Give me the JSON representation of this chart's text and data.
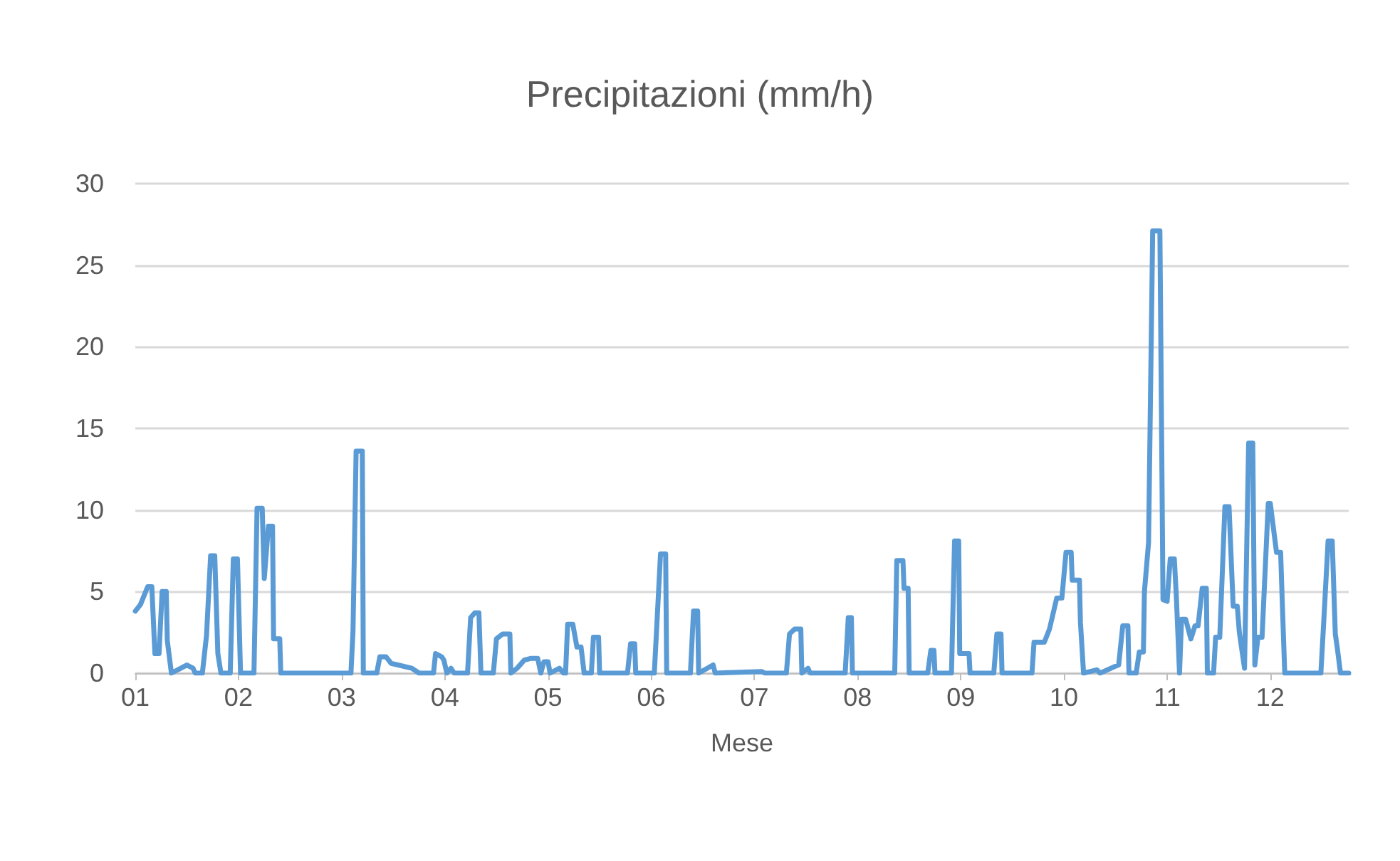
{
  "chart_data": {
    "type": "line",
    "title": "Precipitazioni (mm/h)",
    "xlabel": "Mese",
    "xlim": [
      1,
      12.76
    ],
    "ylim": [
      0,
      30
    ],
    "yticks": [
      0,
      5,
      10,
      15,
      20,
      25,
      30
    ],
    "xticks": [
      {
        "value": 1,
        "label": "01"
      },
      {
        "value": 2,
        "label": "02"
      },
      {
        "value": 3,
        "label": "03"
      },
      {
        "value": 4,
        "label": "04"
      },
      {
        "value": 5,
        "label": "05"
      },
      {
        "value": 6,
        "label": "06"
      },
      {
        "value": 7,
        "label": "07"
      },
      {
        "value": 8,
        "label": "08"
      },
      {
        "value": 9,
        "label": "09"
      },
      {
        "value": 10,
        "label": "10"
      },
      {
        "value": 11,
        "label": "11"
      },
      {
        "value": 12,
        "label": "12"
      }
    ],
    "grid": "y",
    "marker": "none",
    "line_style": "solid",
    "series": [
      {
        "color": "#5b9bd5",
        "x": [
          1.0,
          1.05,
          1.12,
          1.16,
          1.19,
          1.23,
          1.26,
          1.3,
          1.31,
          1.35,
          1.5,
          1.56,
          1.58,
          1.65,
          1.69,
          1.73,
          1.77,
          1.8,
          1.83,
          1.92,
          1.95,
          1.99,
          2.02,
          2.15,
          2.18,
          2.23,
          2.25,
          2.29,
          2.33,
          2.34,
          2.4,
          2.41,
          3.09,
          3.11,
          3.14,
          3.2,
          3.21,
          3.34,
          3.37,
          3.43,
          3.48,
          3.68,
          3.75,
          3.89,
          3.91,
          3.97,
          3.99,
          4.02,
          4.06,
          4.09,
          4.22,
          4.25,
          4.29,
          4.33,
          4.35,
          4.47,
          4.5,
          4.56,
          4.63,
          4.64,
          4.7,
          4.77,
          4.83,
          4.9,
          4.93,
          4.96,
          5.0,
          5.02,
          5.11,
          5.15,
          5.17,
          5.19,
          5.24,
          5.28,
          5.32,
          5.35,
          5.42,
          5.44,
          5.49,
          5.5,
          5.77,
          5.8,
          5.84,
          5.85,
          6.03,
          6.05,
          6.09,
          6.14,
          6.15,
          6.38,
          6.41,
          6.45,
          6.46,
          6.6,
          6.62,
          7.07,
          7.1,
          7.31,
          7.34,
          7.39,
          7.45,
          7.46,
          7.52,
          7.54,
          7.88,
          7.91,
          7.94,
          7.95,
          8.36,
          8.38,
          8.44,
          8.45,
          8.49,
          8.5,
          8.68,
          8.71,
          8.74,
          8.75,
          8.91,
          8.94,
          8.98,
          8.99,
          9.08,
          9.09,
          9.32,
          9.35,
          9.39,
          9.4,
          9.69,
          9.71,
          9.81,
          9.86,
          9.93,
          9.98,
          10.02,
          10.07,
          10.08,
          10.15,
          10.16,
          10.19,
          10.32,
          10.35,
          10.49,
          10.53,
          10.57,
          10.62,
          10.63,
          10.7,
          10.73,
          10.77,
          10.78,
          10.82,
          10.86,
          10.93,
          10.96,
          11.0,
          11.03,
          11.07,
          11.09,
          11.12,
          11.14,
          11.18,
          11.23,
          11.27,
          11.3,
          11.34,
          11.38,
          11.39,
          11.45,
          11.47,
          11.51,
          11.56,
          11.6,
          11.64,
          11.68,
          11.7,
          11.75,
          11.79,
          11.83,
          11.85,
          11.88,
          11.92,
          11.98,
          12.0,
          12.06,
          12.1,
          12.12,
          12.14,
          12.49,
          12.52,
          12.56,
          12.6,
          12.63,
          12.65,
          12.68,
          12.76
        ],
        "values": [
          3.8,
          4.2,
          5.3,
          5.3,
          1.2,
          1.2,
          5.0,
          5.0,
          2.0,
          0,
          0.5,
          0.3,
          0,
          0,
          2.3,
          7.2,
          7.2,
          1.2,
          0,
          0,
          7.0,
          7.0,
          0,
          0,
          10.1,
          10.1,
          5.8,
          9.0,
          9.0,
          2.1,
          2.1,
          0,
          0,
          2.6,
          13.6,
          13.6,
          0,
          0,
          1.0,
          1.0,
          0.6,
          0.3,
          0,
          0,
          1.2,
          1.0,
          0.8,
          0,
          0.3,
          0,
          0,
          3.4,
          3.7,
          3.7,
          0,
          0,
          2.1,
          2.4,
          2.4,
          0,
          0.3,
          0.8,
          0.9,
          0.9,
          0,
          0.7,
          0.7,
          0,
          0.3,
          0,
          0,
          3.0,
          3.0,
          1.6,
          1.6,
          0,
          0,
          2.2,
          2.2,
          0,
          0,
          1.8,
          1.8,
          0,
          0,
          2.4,
          7.3,
          7.3,
          0,
          0,
          3.8,
          3.8,
          0,
          0.5,
          0,
          0.1,
          0,
          0,
          2.4,
          2.7,
          2.7,
          0,
          0.3,
          0,
          0,
          3.4,
          3.4,
          0,
          0,
          6.9,
          6.9,
          5.2,
          5.2,
          0,
          0,
          1.4,
          1.4,
          0,
          0,
          8.1,
          8.1,
          1.2,
          1.2,
          0,
          0,
          2.4,
          2.4,
          0,
          0,
          1.9,
          1.9,
          2.7,
          4.6,
          4.6,
          7.4,
          7.4,
          5.7,
          5.7,
          3.1,
          0,
          0.2,
          0,
          0.4,
          0.5,
          2.9,
          2.9,
          0,
          0,
          1.3,
          1.3,
          5.0,
          8.0,
          27.1,
          27.1,
          4.5,
          4.4,
          7.0,
          7.0,
          4.6,
          0,
          3.3,
          3.3,
          2.1,
          2.9,
          2.9,
          5.2,
          5.2,
          0,
          0,
          2.2,
          2.2,
          10.2,
          10.2,
          4.1,
          4.1,
          2.5,
          0.3,
          14.1,
          14.1,
          0.5,
          2.2,
          2.2,
          10.4,
          10.4,
          7.4,
          7.4,
          3.6,
          0,
          0,
          3.4,
          8.1,
          8.1,
          2.4,
          1.5,
          0,
          0
        ]
      }
    ]
  }
}
